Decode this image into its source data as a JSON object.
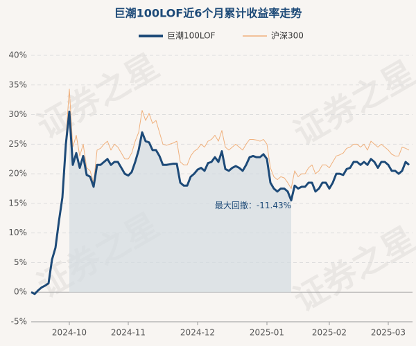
{
  "chart_data": {
    "type": "line",
    "title": "巨潮100LOF近6个月累计收益率走势",
    "annotation": "最大回撤：-11.43%",
    "watermark": "证券之星",
    "categories": [
      null,
      null,
      null,
      null,
      null,
      null,
      null,
      null,
      null,
      null,
      null,
      "2024-10",
      null,
      null,
      null,
      null,
      null,
      null,
      null,
      null,
      null,
      null,
      null,
      null,
      null,
      null,
      null,
      null,
      "2024-11",
      null,
      null,
      null,
      null,
      null,
      null,
      null,
      null,
      null,
      null,
      null,
      null,
      null,
      null,
      null,
      null,
      null,
      null,
      null,
      "2024-12",
      null,
      null,
      null,
      null,
      null,
      null,
      null,
      null,
      null,
      null,
      null,
      null,
      null,
      null,
      null,
      null,
      null,
      null,
      null,
      "2025-01",
      null,
      null,
      null,
      null,
      null,
      null,
      null,
      null,
      null,
      null,
      null,
      null,
      null,
      null,
      null,
      null,
      null,
      "2025-02",
      null,
      null,
      null,
      null,
      null,
      null,
      null,
      null,
      null,
      null,
      null,
      null,
      null,
      null,
      null,
      null,
      "2025-03",
      null,
      null,
      null,
      null,
      null,
      null
    ],
    "series": [
      {
        "name": "巨潮100LOF",
        "color": "#1d4a78",
        "values": [
          0,
          -0.3,
          0.3,
          0.8,
          1.1,
          1.5,
          5.5,
          7.5,
          12,
          16,
          25,
          30.5,
          21.5,
          23.5,
          21,
          23,
          19.8,
          19.5,
          17.8,
          21.5,
          21.5,
          22,
          22.5,
          21.5,
          22,
          22,
          21,
          20,
          19.7,
          20.3,
          22,
          24,
          27,
          25.5,
          25.3,
          24,
          24,
          23,
          21.5,
          21.5,
          21.6,
          21.7,
          21.7,
          18.5,
          18,
          18,
          19.5,
          20,
          20.7,
          21,
          20.5,
          21.8,
          22,
          22.8,
          22,
          23.8,
          20.8,
          20.5,
          21,
          21.3,
          21,
          20.5,
          21.5,
          22.8,
          23,
          22.8,
          22.8,
          23.3,
          22.5,
          18.5,
          17.5,
          17,
          17.5,
          17.5,
          17,
          15.5,
          18,
          17.5,
          17.8,
          17.8,
          18.5,
          18.5,
          17,
          17.5,
          18.5,
          18.5,
          17.5,
          18.5,
          20,
          20,
          19.8,
          20.8,
          21,
          22,
          22,
          21.5,
          22,
          21.5,
          22.5,
          22,
          21,
          22,
          22,
          21.5,
          20.5,
          20.5,
          20,
          20.5,
          22,
          21.5
        ]
      },
      {
        "name": "沪深300",
        "color": "#f0b07c",
        "values": [
          0,
          -0.4,
          0.2,
          0.7,
          1,
          1.3,
          5.5,
          7.3,
          12,
          16,
          26,
          34.3,
          24.5,
          26.5,
          23,
          25,
          21,
          20.5,
          18.5,
          24,
          24.3,
          25,
          25.5,
          24,
          25,
          24.5,
          23.5,
          22.5,
          22.5,
          23.5,
          25.5,
          27,
          30.7,
          29,
          30.2,
          28.5,
          29,
          27,
          25,
          24.8,
          25,
          25.2,
          25.5,
          22,
          21.5,
          21.5,
          23,
          23.8,
          24.2,
          25,
          24.5,
          25.5,
          25.8,
          26.5,
          25.5,
          27.3,
          24.5,
          24,
          24.5,
          25,
          24.5,
          24,
          25,
          25.8,
          25.8,
          25.7,
          25.5,
          25.8,
          25,
          21,
          19.5,
          19,
          19.5,
          19.3,
          18.5,
          17.5,
          20.5,
          19.5,
          20,
          20,
          21,
          21.5,
          20,
          20.5,
          21.5,
          21.5,
          21,
          22,
          23,
          23.2,
          23.5,
          24.3,
          24.5,
          25,
          25,
          24.5,
          25,
          24,
          25.5,
          25,
          24.5,
          25,
          24.5,
          24,
          23.3,
          23,
          23,
          24.5,
          24.3,
          24
        ]
      }
    ],
    "ylim": [
      -5,
      40
    ],
    "yticks": [
      {
        "value": -5,
        "label": "-5%"
      },
      {
        "value": 0,
        "label": "0%"
      },
      {
        "value": 5,
        "label": "5%"
      },
      {
        "value": 10,
        "label": "10%"
      },
      {
        "value": 15,
        "label": "15%"
      },
      {
        "value": 20,
        "label": "20%"
      },
      {
        "value": 25,
        "label": "25%"
      },
      {
        "value": 30,
        "label": "30%"
      },
      {
        "value": 35,
        "label": "35%"
      },
      {
        "value": 40,
        "label": "40%"
      }
    ],
    "grid": true
  }
}
